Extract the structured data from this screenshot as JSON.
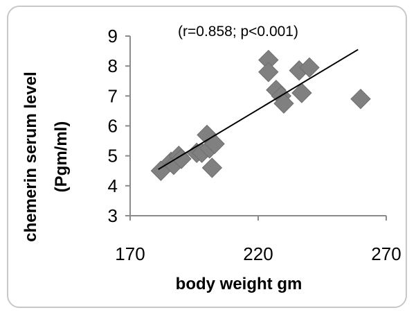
{
  "chart_data": {
    "type": "scatter",
    "title": "",
    "annotation": "(r=0.858; p<0.001)",
    "xlabel": "body weight gm",
    "ylabel_line1": "chemerin serum level",
    "ylabel_line2": "(Pgm/ml)",
    "xlim": [
      170,
      270
    ],
    "ylim": [
      3,
      9
    ],
    "xticks": [
      170,
      220,
      270
    ],
    "yticks": [
      3,
      4,
      5,
      6,
      7,
      8,
      9
    ],
    "grid": false,
    "legend": "none",
    "marker": "diamond",
    "marker_color": "#808080",
    "line_color": "#000000",
    "points": [
      {
        "x": 182,
        "y": 4.5
      },
      {
        "x": 186,
        "y": 4.8
      },
      {
        "x": 187,
        "y": 4.7
      },
      {
        "x": 189,
        "y": 5.0
      },
      {
        "x": 190,
        "y": 4.9
      },
      {
        "x": 196,
        "y": 5.1
      },
      {
        "x": 198,
        "y": 5.1
      },
      {
        "x": 200,
        "y": 5.7
      },
      {
        "x": 201,
        "y": 5.25
      },
      {
        "x": 202,
        "y": 4.6
      },
      {
        "x": 203,
        "y": 5.4
      },
      {
        "x": 224,
        "y": 8.2
      },
      {
        "x": 224,
        "y": 7.8
      },
      {
        "x": 227,
        "y": 7.2
      },
      {
        "x": 229,
        "y": 7.0
      },
      {
        "x": 230,
        "y": 6.75
      },
      {
        "x": 236,
        "y": 7.85
      },
      {
        "x": 237,
        "y": 7.1
      },
      {
        "x": 240,
        "y": 7.95
      },
      {
        "x": 260,
        "y": 6.9
      }
    ],
    "trendline": {
      "x": [
        181,
        259
      ],
      "y": [
        4.55,
        8.55
      ]
    }
  }
}
